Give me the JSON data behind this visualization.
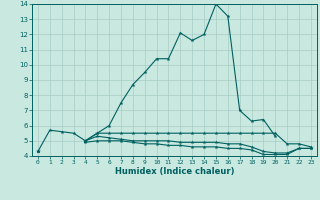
{
  "xlabel": "Humidex (Indice chaleur)",
  "x_values": [
    0,
    1,
    2,
    3,
    4,
    5,
    6,
    7,
    8,
    9,
    10,
    11,
    12,
    13,
    14,
    15,
    16,
    17,
    18,
    19,
    20,
    21,
    22,
    23
  ],
  "line1_y": [
    4.3,
    5.7,
    5.6,
    5.5,
    5.0,
    5.5,
    6.0,
    7.5,
    8.7,
    9.5,
    10.4,
    10.4,
    12.1,
    11.6,
    12.0,
    14.0,
    13.2,
    7.0,
    6.3,
    6.4,
    5.3,
    null,
    null,
    null
  ],
  "line2_y": [
    4.3,
    null,
    null,
    null,
    5.0,
    5.5,
    5.5,
    5.5,
    5.5,
    5.5,
    5.5,
    5.5,
    5.5,
    5.5,
    5.5,
    5.5,
    5.5,
    5.5,
    5.5,
    5.5,
    5.5,
    4.8,
    4.8,
    4.6
  ],
  "line3_y": [
    4.3,
    null,
    null,
    null,
    5.0,
    5.3,
    5.2,
    5.1,
    5.0,
    5.0,
    5.0,
    5.0,
    4.9,
    4.9,
    4.9,
    4.9,
    4.8,
    4.8,
    4.6,
    4.3,
    4.2,
    4.2,
    4.5,
    4.5
  ],
  "line4_y": [
    4.3,
    null,
    null,
    null,
    4.9,
    5.0,
    5.0,
    5.0,
    4.9,
    4.8,
    4.8,
    4.7,
    4.7,
    4.6,
    4.6,
    4.6,
    4.5,
    4.5,
    4.4,
    4.1,
    4.1,
    4.1,
    4.5,
    4.5
  ],
  "line_color": "#006060",
  "bg_color": "#c8e8e0",
  "grid_color": "#a8ccc4",
  "xlim": [
    -0.5,
    23.5
  ],
  "ylim": [
    4,
    14
  ],
  "yticks": [
    4,
    5,
    6,
    7,
    8,
    9,
    10,
    11,
    12,
    13,
    14
  ],
  "xticks": [
    0,
    1,
    2,
    3,
    4,
    5,
    6,
    7,
    8,
    9,
    10,
    11,
    12,
    13,
    14,
    15,
    16,
    17,
    18,
    19,
    20,
    21,
    22,
    23
  ]
}
